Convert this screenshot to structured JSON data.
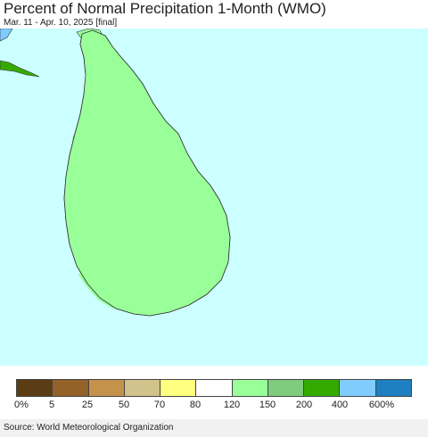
{
  "title": "Percent of Normal Precipitation 1-Month (WMO)",
  "subtitle": "Mar. 11 - Apr. 10, 2025 [final]",
  "source": "Source: World Meteorological Organization",
  "colors": {
    "ocean": "#ccffff",
    "c0_5": "#5a3d14",
    "c5_25": "#946128",
    "c25_50": "#c4924b",
    "c50_70": "#d2c38c",
    "c70_80": "#ffff80",
    "c80_120": "#ffffff",
    "c120_150": "#99ff99",
    "c150_200": "#7fcc7f",
    "c200_400": "#33aa00",
    "c400_600": "#80ccff",
    "c600_plus": "#1e80c0"
  },
  "legend": {
    "swatches": [
      "#5a3d14",
      "#946128",
      "#c4924b",
      "#d2c38c",
      "#ffff80",
      "#ffffff",
      "#99ff99",
      "#7fcc7f",
      "#33aa00",
      "#80ccff",
      "#1e80c0"
    ],
    "labels": [
      "0%",
      "5",
      "25",
      "50",
      "70",
      "80",
      "120",
      "150",
      "200",
      "400",
      "600%"
    ]
  }
}
